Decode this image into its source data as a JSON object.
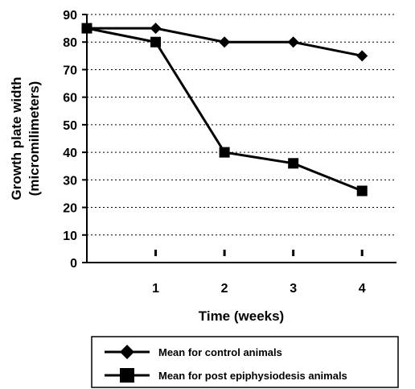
{
  "chart_data": {
    "type": "line",
    "x": [
      0,
      1,
      2,
      3,
      4
    ],
    "x_tick_labels": [
      "1",
      "2",
      "3",
      "4"
    ],
    "x_tick_values": [
      1,
      2,
      3,
      4
    ],
    "xlim": [
      0,
      4.5
    ],
    "ylim": [
      0,
      90
    ],
    "y_ticks": [
      0,
      10,
      20,
      30,
      40,
      50,
      60,
      70,
      80,
      90
    ],
    "xlabel": "Time  (weeks)",
    "ylabel_line1": "Growth plate width",
    "ylabel_line2": "(micromilimeters)",
    "grid": "horizontal dotted",
    "legend_position": "bottom",
    "series": [
      {
        "name": "Mean for control animals",
        "marker": "diamond",
        "color": "#000000",
        "values": [
          85,
          85,
          80,
          80,
          75
        ]
      },
      {
        "name": "Mean for post epiphysiodesis animals",
        "marker": "square",
        "color": "#000000",
        "values": [
          85,
          80,
          40,
          36,
          26
        ]
      }
    ]
  }
}
